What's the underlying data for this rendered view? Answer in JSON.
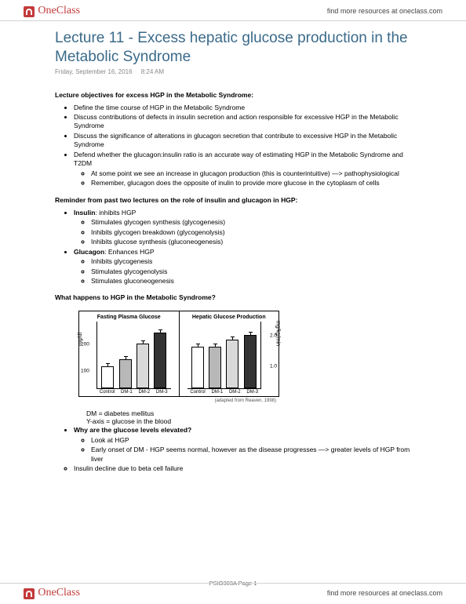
{
  "brand": "OneClass",
  "header_link": "find more resources at oneclass.com",
  "title": "Lecture 11 - Excess hepatic glucose production in the Metabolic Syndrome",
  "meta_date": "Friday, September 16, 2016",
  "meta_time": "8:24 AM",
  "sec1_heading": "Lecture objectives for excess HGP in the Metabolic Syndrome:",
  "obj1": "Define the time course of HGP in the Metabolic Syndrome",
  "obj2": "Discuss contributions of defects in insulin secretion and action responsible for excessive HGP in the Metabolic Syndrome",
  "obj3": "Discuss the significance of alterations in glucagon secretion that contribute to excessive HGP in the Metabolic Syndrome",
  "obj4": "Defend whether the glucagon:insulin ratio is an accurate way of estimating HGP in the Metabolic Syndrome and T2DM",
  "obj4a": "At some point we see an increase in glucagon production (this is counterintuitive) —> pathophysiological",
  "obj4b": "Remember, glucagon does the opposite of inulin to provide more glucose in the cytoplasm of cells",
  "sec2_heading": "Reminder from past two lectures on the role of insulin and glucagon in HGP:",
  "insulin_label": "Insulin",
  "insulin_text": ": inhibits HGP",
  "ins1": "Stimulates glycogen synthesis (glycogenesis)",
  "ins2": "Inhibits glycogen breakdown (glycogenolysis)",
  "ins3": "Inhibits glucose synthesis (gluconeogenesis)",
  "glucagon_label": "Glucagon",
  "glucagon_text": ": Enhances HGP",
  "glu1": "Inhibits glycogenesis",
  "glu2": "Stimulates glycogenolysis",
  "glu3": "Stimulates gluconeogenesis",
  "sec3_heading": "What happens to HGP in the Metabolic Syndrome?",
  "chart": {
    "panel1_title": "Fasting Plasma Glucose",
    "panel2_title": "Hepatic Glucose Production",
    "ylabel_left": "mg/dl",
    "ylabel_right": "mg/kg/min",
    "yticks_left": [
      "100",
      "200"
    ],
    "yticks_right": [
      "1.0",
      "2.0"
    ],
    "xlabels": [
      "Control",
      "DM-1",
      "DM-2",
      "DM-3"
    ],
    "bar_colors": [
      "#ffffff",
      "#b8b8b8",
      "#d9d9d9",
      "#333333"
    ],
    "panel1_heights_pct": [
      34,
      44,
      68,
      84
    ],
    "panel2_heights_pct": [
      63,
      63,
      73,
      80
    ],
    "caption": "(adapted from Reaven, 1998)"
  },
  "note1": "DM = diabetes mellitus",
  "note2": "Y-axis = glucose in the blood",
  "why_heading": "Why are the glucose levels elevated?",
  "why1": "Look at HGP",
  "why2": "Early onset of DM - HGP seems normal, however as the disease progresses —> greater levels of HGP from liver",
  "why3": "Insulin decline due to beta cell failure",
  "page_label": "PSIO303A Page 1"
}
